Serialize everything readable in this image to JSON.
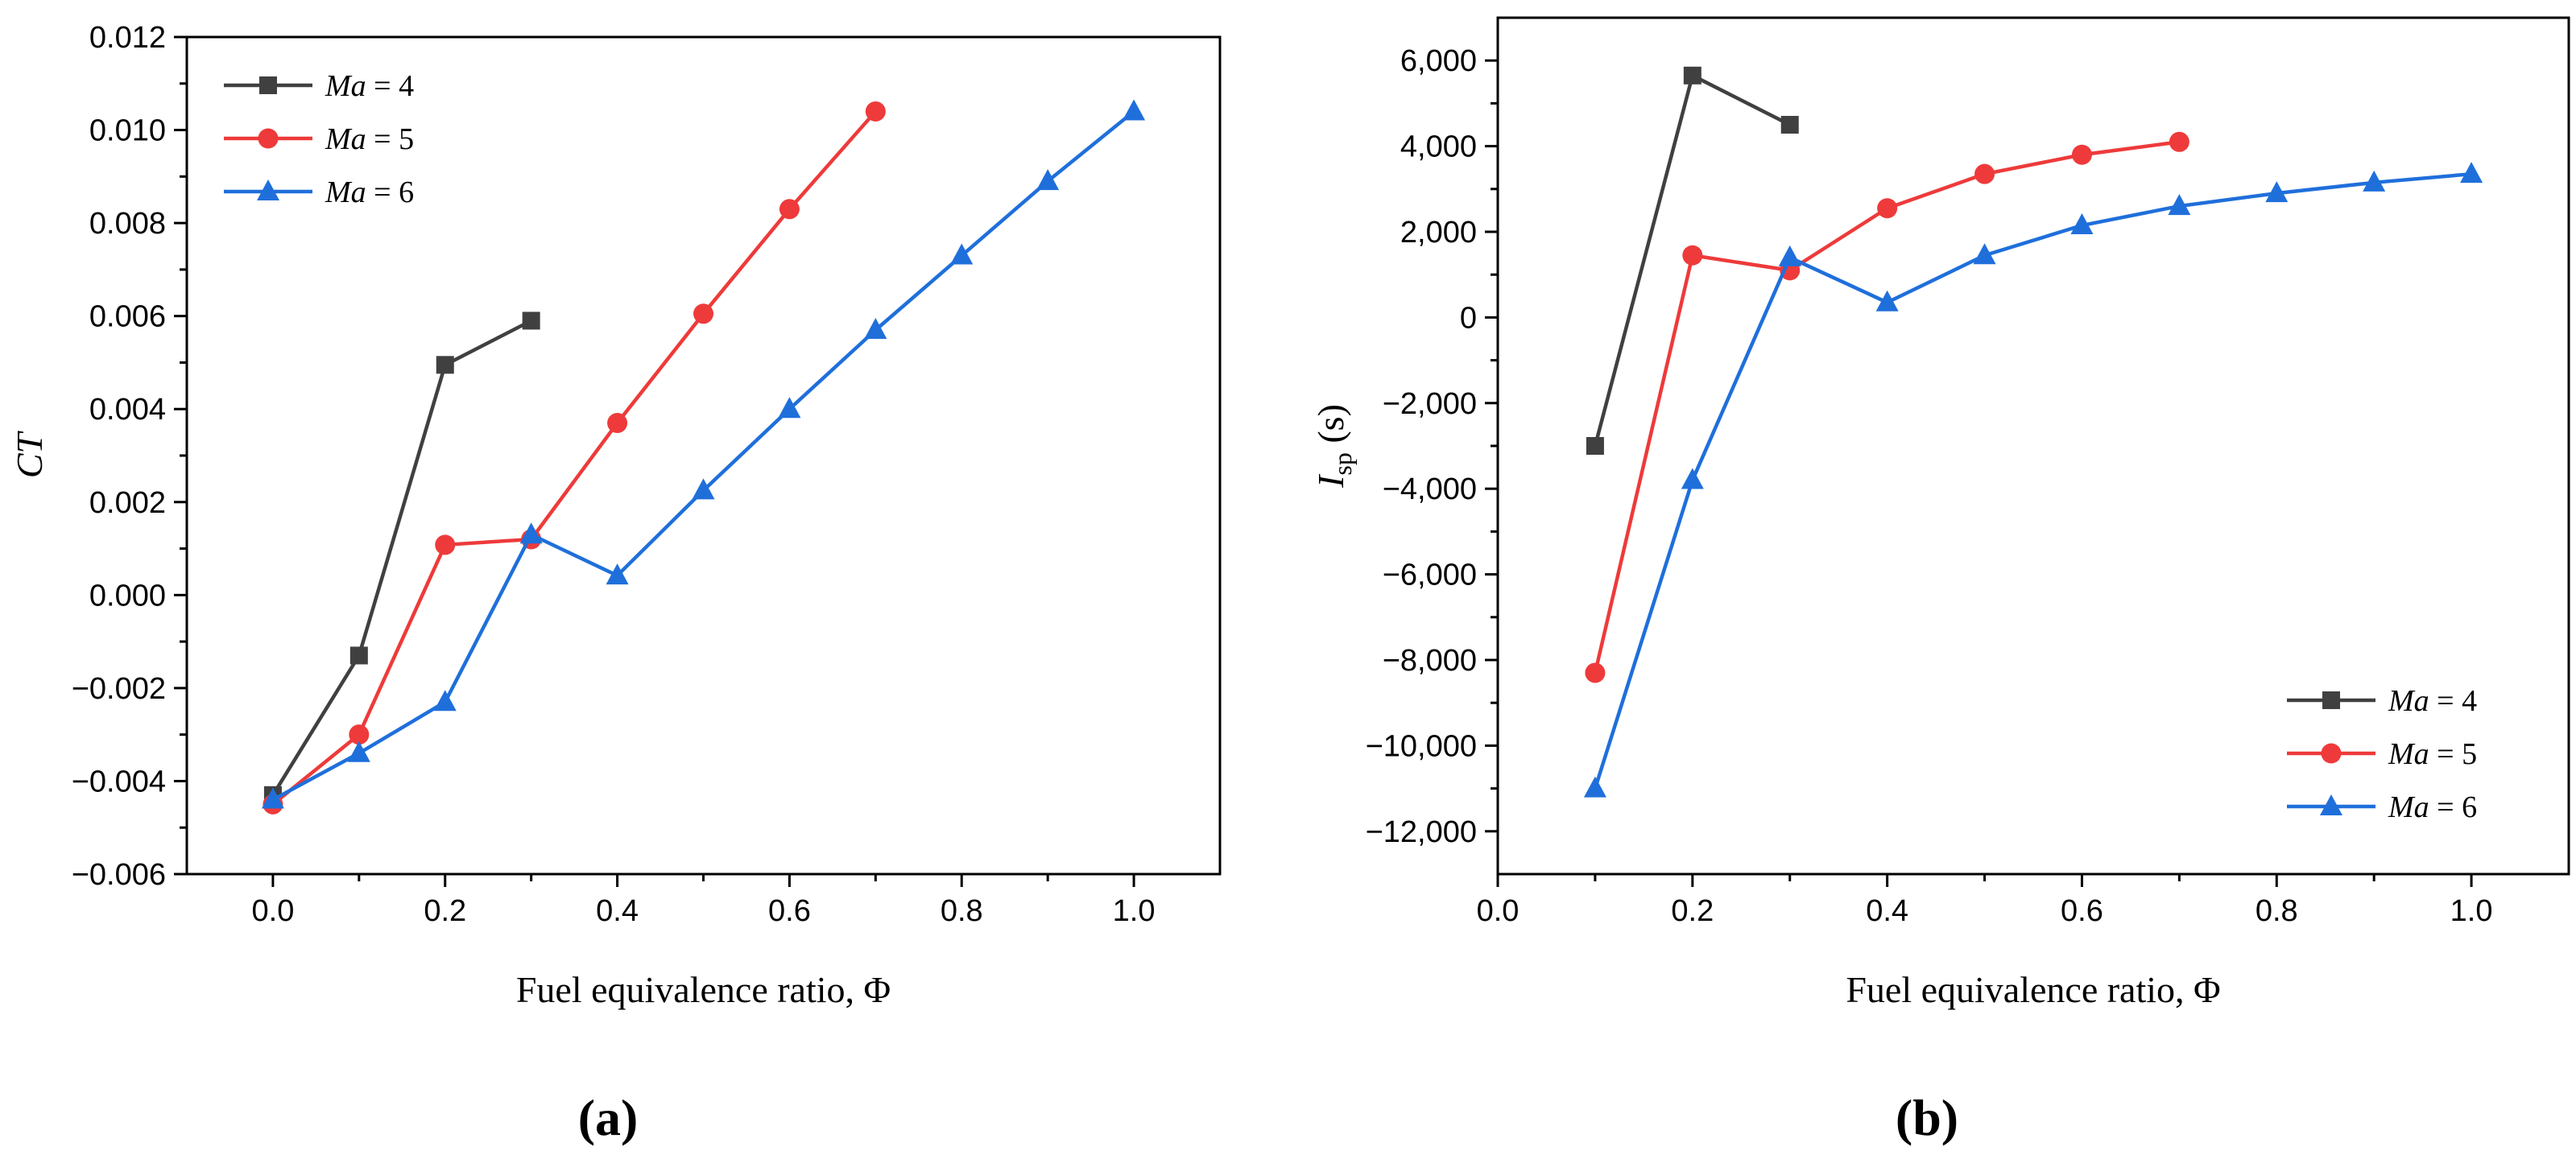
{
  "chart_data": [
    {
      "type": "line",
      "panel_label": "(a)",
      "xlabel": "Fuel equivalence ratio, Φ",
      "ylabel": "CT",
      "xlim": [
        -0.1,
        1.1
      ],
      "ylim": [
        -0.006,
        0.012
      ],
      "xticks": [
        0.0,
        0.2,
        0.4,
        0.6,
        0.8,
        1.0
      ],
      "xtick_labels": [
        "0.0",
        "0.2",
        "0.4",
        "0.6",
        "0.8",
        "1.0"
      ],
      "yticks": [
        -0.006,
        -0.004,
        -0.002,
        0.0,
        0.002,
        0.004,
        0.006,
        0.008,
        0.01,
        0.012
      ],
      "ytick_labels": [
        "−0.006",
        "−0.004",
        "−0.002",
        "0.000",
        "0.002",
        "0.004",
        "0.006",
        "0.008",
        "0.010",
        "0.012"
      ],
      "legend_position": "top-left",
      "series": [
        {
          "name": "Ma = 4",
          "label_var": "Ma",
          "label_val": "4",
          "color": "#404040",
          "marker": "square",
          "x": [
            0.0,
            0.1,
            0.2,
            0.3
          ],
          "y": [
            -0.0043,
            -0.0013,
            0.00495,
            0.0059
          ]
        },
        {
          "name": "Ma = 5",
          "label_var": "Ma",
          "label_val": "5",
          "color": "#ee3a3a",
          "marker": "circle",
          "x": [
            0.0,
            0.1,
            0.2,
            0.3,
            0.4,
            0.5,
            0.6,
            0.7
          ],
          "y": [
            -0.0045,
            -0.003,
            0.00108,
            0.0012,
            0.0037,
            0.00605,
            0.0083,
            0.0104
          ]
        },
        {
          "name": "Ma = 6",
          "label_var": "Ma",
          "label_val": "6",
          "color": "#1f6fdb",
          "marker": "triangle",
          "x": [
            0.0,
            0.1,
            0.2,
            0.3,
            0.4,
            0.5,
            0.6,
            0.7,
            0.8,
            0.9,
            1.0
          ],
          "y": [
            -0.0044,
            -0.0034,
            -0.0023,
            0.0013,
            0.00042,
            0.00225,
            0.004,
            0.0057,
            0.0073,
            0.0089,
            0.0104
          ]
        }
      ]
    },
    {
      "type": "line",
      "panel_label": "(b)",
      "xlabel": "Fuel equivalence ratio, Φ",
      "ylabel_main": "I",
      "ylabel_sub": "sp",
      "ylabel_unit": " (s)",
      "xlim": [
        0.0,
        1.1
      ],
      "ylim": [
        -13000,
        7000
      ],
      "xticks": [
        0.0,
        0.2,
        0.4,
        0.6,
        0.8,
        1.0
      ],
      "xtick_labels": [
        "0.0",
        "0.2",
        "0.4",
        "0.6",
        "0.8",
        "1.0"
      ],
      "yticks": [
        -12000,
        -10000,
        -8000,
        -6000,
        -4000,
        -2000,
        0,
        2000,
        4000,
        6000
      ],
      "ytick_labels": [
        "−12,000",
        "−10,000",
        "−8,000",
        "−6,000",
        "−4,000",
        "−2,000",
        "0",
        "2,000",
        "4,000",
        "6,000"
      ],
      "legend_position": "bottom-right",
      "series": [
        {
          "name": "Ma = 4",
          "label_var": "Ma",
          "label_val": "4",
          "color": "#404040",
          "marker": "square",
          "x": [
            0.1,
            0.2,
            0.3
          ],
          "y": [
            -3000,
            5650,
            4500
          ]
        },
        {
          "name": "Ma = 5",
          "label_var": "Ma",
          "label_val": "5",
          "color": "#ee3a3a",
          "marker": "circle",
          "x": [
            0.1,
            0.2,
            0.3,
            0.4,
            0.5,
            0.6,
            0.7
          ],
          "y": [
            -8300,
            1450,
            1100,
            2550,
            3350,
            3800,
            4100
          ]
        },
        {
          "name": "Ma = 6",
          "label_var": "Ma",
          "label_val": "6",
          "color": "#1f6fdb",
          "marker": "triangle",
          "x": [
            0.1,
            0.2,
            0.3,
            0.4,
            0.5,
            0.6,
            0.7,
            0.8,
            0.9,
            1.0
          ],
          "y": [
            -11000,
            -3800,
            1400,
            350,
            1450,
            2150,
            2600,
            2900,
            3150,
            3350
          ]
        }
      ]
    }
  ]
}
